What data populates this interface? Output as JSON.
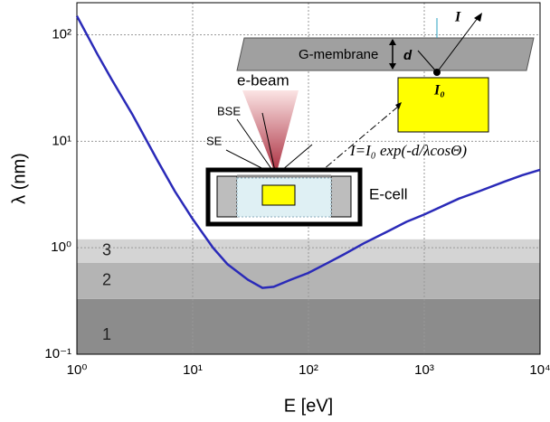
{
  "chart_data": {
    "type": "line",
    "xlabel": "E [eV]",
    "ylabel": "λ (nm)",
    "log_x": true,
    "log_y": true,
    "grid": true,
    "xlim": [
      1,
      10000
    ],
    "ylim": [
      0.1,
      200
    ],
    "xticks": [
      {
        "value": 1,
        "label": "10⁰"
      },
      {
        "value": 10,
        "label": "10¹"
      },
      {
        "value": 100,
        "label": "10²"
      },
      {
        "value": 1000,
        "label": "10³"
      },
      {
        "value": 10000,
        "label": "10⁴"
      }
    ],
    "yticks": [
      {
        "value": 0.1,
        "label": "10⁻¹"
      },
      {
        "value": 1,
        "label": "10⁰"
      },
      {
        "value": 10,
        "label": "10¹"
      },
      {
        "value": 100,
        "label": "10²"
      }
    ],
    "bands": [
      {
        "label": "1",
        "ymin": 0.1,
        "ymax": 0.33,
        "color": "#8c8c8c"
      },
      {
        "label": "2",
        "ymin": 0.33,
        "ymax": 0.72,
        "color": "#b4b4b4"
      },
      {
        "label": "3",
        "ymin": 0.72,
        "ymax": 1.2,
        "color": "#d4d4d4"
      }
    ],
    "series": [
      {
        "color": "#2a2ab8",
        "x": [
          1,
          1.5,
          2,
          3,
          5,
          7,
          10,
          15,
          20,
          30,
          40,
          50,
          70,
          100,
          150,
          200,
          300,
          500,
          700,
          1000,
          2000,
          3000,
          5000,
          7000,
          10000
        ],
        "values": [
          150,
          66,
          38,
          18,
          6.5,
          3.4,
          1.86,
          1.0,
          0.7,
          0.5,
          0.42,
          0.43,
          0.5,
          0.58,
          0.73,
          0.86,
          1.1,
          1.45,
          1.75,
          2.05,
          2.9,
          3.4,
          4.2,
          4.8,
          5.4
        ]
      }
    ],
    "inset": {
      "membrane": "G-membrane",
      "d": "d",
      "I": "I",
      "I0": "I₀",
      "beam": "e-beam",
      "bse": "BSE",
      "se": "SE",
      "formula": "I=I₀ exp(-d/λcosΘ)",
      "cell": "E-cell"
    }
  }
}
